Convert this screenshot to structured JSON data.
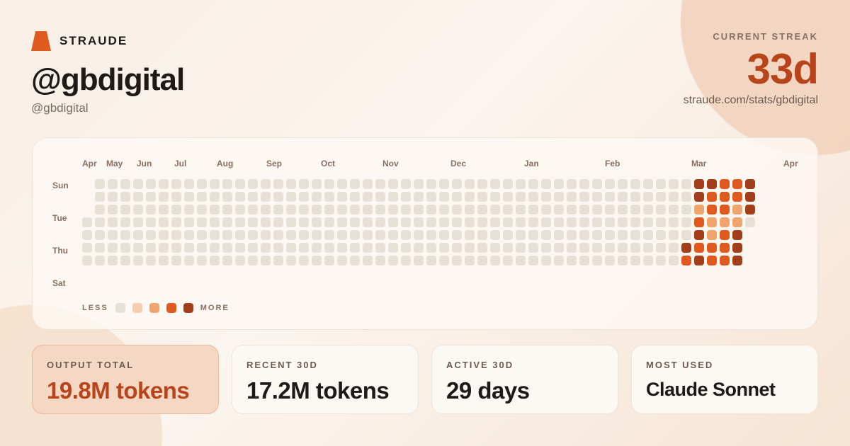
{
  "brand": {
    "name": "STRAUDE",
    "accent": "#e05a20"
  },
  "profile": {
    "title": "@gbdigital",
    "handle": "@gbdigital"
  },
  "streak": {
    "label": "CURRENT STREAK",
    "value": "33d",
    "url": "straude.com/stats/gbdigital"
  },
  "heatmap": {
    "months": [
      "Apr",
      "May",
      "Jun",
      "Jul",
      "Aug",
      "Sep",
      "Oct",
      "Nov",
      "Dec",
      "Jan",
      "Feb",
      "Mar",
      "Apr"
    ],
    "days": [
      "Sun",
      "Tue",
      "Thu",
      "Sat"
    ],
    "colors": [
      "#e8e0d6",
      "#f7cdb0",
      "#f0a56e",
      "#e05a20",
      "#a23e1a"
    ],
    "legend": {
      "less": "LESS",
      "more": "MORE"
    },
    "tail_weeks": [
      [
        0,
        0,
        0,
        0,
        0,
        4,
        3
      ],
      [
        4,
        4,
        2,
        3,
        4,
        3,
        4
      ],
      [
        4,
        3,
        3,
        2,
        2,
        3,
        3
      ],
      [
        3,
        3,
        3,
        2,
        3,
        3,
        3
      ],
      [
        3,
        3,
        2,
        2,
        4,
        4,
        4
      ],
      [
        4,
        4,
        4,
        0,
        null,
        null,
        null
      ]
    ],
    "total_weeks": 53,
    "first_week_start_row": 3
  },
  "stats": [
    {
      "label": "OUTPUT TOTAL",
      "value": "19.8M tokens"
    },
    {
      "label": "RECENT 30D",
      "value": "17.2M tokens"
    },
    {
      "label": "ACTIVE 30D",
      "value": "29 days"
    },
    {
      "label": "MOST USED",
      "value": "Claude Sonnet"
    }
  ]
}
